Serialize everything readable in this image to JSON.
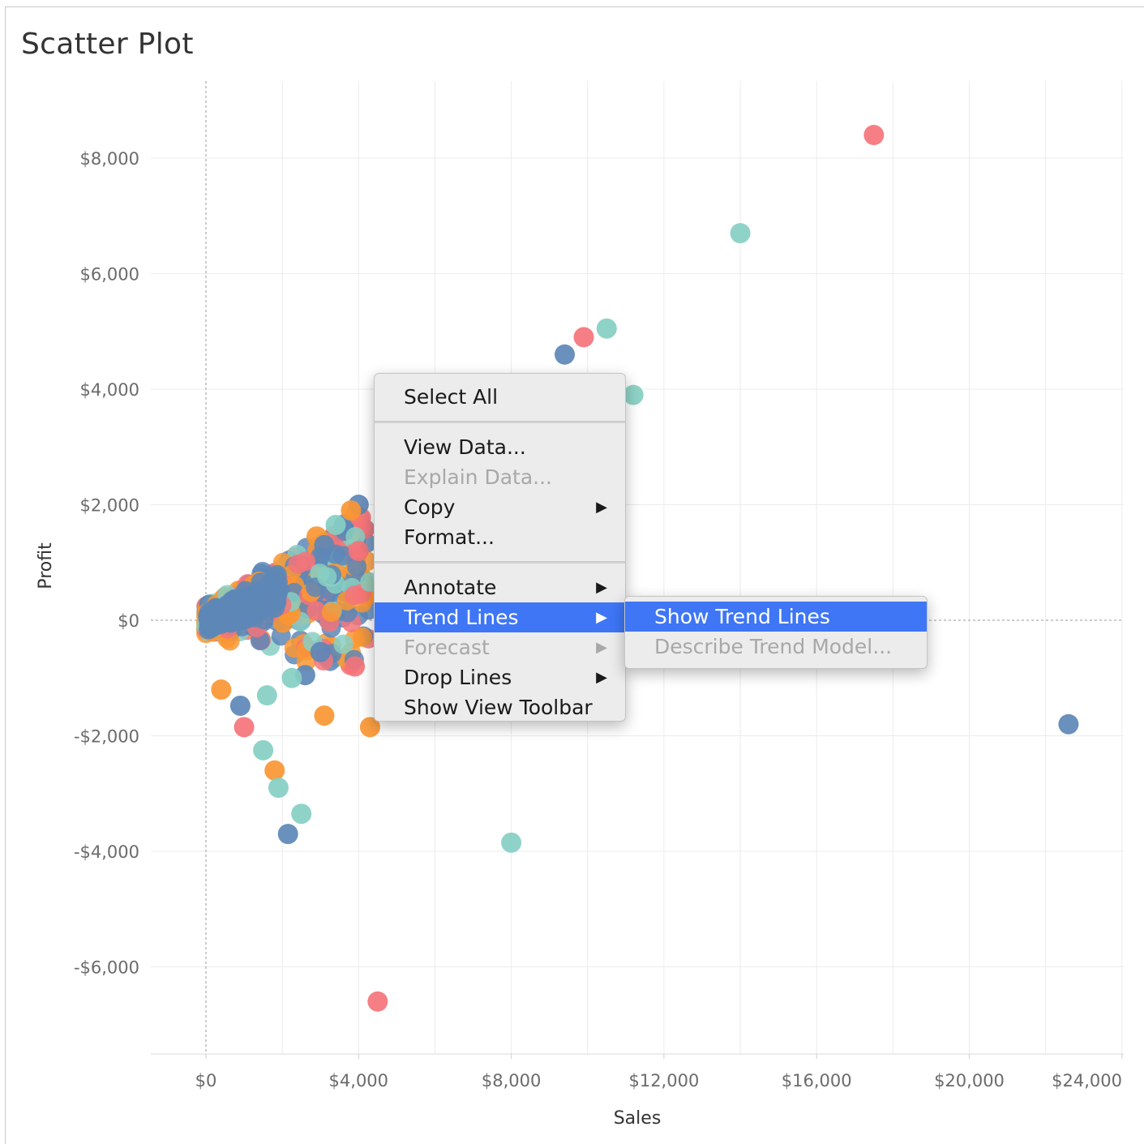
{
  "sheet": {
    "title": "Scatter Plot"
  },
  "chart_data": {
    "type": "scatter",
    "title": "Scatter Plot",
    "xlabel": "Sales",
    "ylabel": "Profit",
    "xlim": [
      -3500,
      24500
    ],
    "ylim": [
      -7400,
      9300
    ],
    "x_ticks": [
      0,
      4000,
      8000,
      12000,
      16000,
      20000,
      24000
    ],
    "x_tick_labels": [
      "$0",
      "$4,000",
      "$8,000",
      "$12,000",
      "$16,000",
      "$20,000",
      "$24,000"
    ],
    "y_ticks": [
      8000,
      6000,
      4000,
      2000,
      0,
      -2000,
      -4000,
      -6000
    ],
    "y_tick_labels": [
      "$8,000",
      "$6,000",
      "$4,000",
      "$2,000",
      "$0",
      "-$2,000",
      "-$4,000",
      "-$6,000"
    ],
    "grid": true,
    "zero_lines": true,
    "colors": {
      "red": "#f4747a",
      "teal": "#86cfc3",
      "blue": "#5d87b7",
      "orange": "#fa9633"
    },
    "points": [
      {
        "x": 17500,
        "y": 8400,
        "c": "red"
      },
      {
        "x": 14000,
        "y": 6700,
        "c": "teal"
      },
      {
        "x": 9900,
        "y": 4900,
        "c": "red"
      },
      {
        "x": 10500,
        "y": 5050,
        "c": "teal"
      },
      {
        "x": 9400,
        "y": 4600,
        "c": "blue"
      },
      {
        "x": 11200,
        "y": 3900,
        "c": "teal"
      },
      {
        "x": 22600,
        "y": -1800,
        "c": "blue"
      },
      {
        "x": 8000,
        "y": -3850,
        "c": "teal"
      },
      {
        "x": 4500,
        "y": -6600,
        "c": "red"
      },
      {
        "x": 4300,
        "y": -1850,
        "c": "orange"
      },
      {
        "x": 3100,
        "y": -1650,
        "c": "orange"
      },
      {
        "x": 3900,
        "y": -800,
        "c": "red"
      },
      {
        "x": 1000,
        "y": -1850,
        "c": "red"
      },
      {
        "x": 1500,
        "y": -2250,
        "c": "teal"
      },
      {
        "x": 1800,
        "y": -2600,
        "c": "orange"
      },
      {
        "x": 1900,
        "y": -2900,
        "c": "teal"
      },
      {
        "x": 2500,
        "y": -3350,
        "c": "teal"
      },
      {
        "x": 2150,
        "y": -3700,
        "c": "blue"
      },
      {
        "x": 900,
        "y": -1480,
        "c": "blue"
      },
      {
        "x": 3000,
        "y": -550,
        "c": "blue"
      },
      {
        "x": 2600,
        "y": -950,
        "c": "blue"
      },
      {
        "x": 2250,
        "y": -1000,
        "c": "teal"
      },
      {
        "x": 1600,
        "y": -1300,
        "c": "teal"
      },
      {
        "x": 400,
        "y": -1200,
        "c": "orange"
      },
      {
        "x": 4000,
        "y": 2000,
        "c": "blue"
      },
      {
        "x": 3800,
        "y": 1900,
        "c": "orange"
      },
      {
        "x": 3400,
        "y": 1650,
        "c": "teal"
      },
      {
        "x": 4000,
        "y": 1200,
        "c": "red"
      },
      {
        "x": 2900,
        "y": 1450,
        "c": "orange"
      },
      {
        "x": 3100,
        "y": 1300,
        "c": "blue"
      }
    ],
    "cluster_note": "dense overlapping cluster of several hundred points near Sales $0-$4,000, Profit -$1,500-$2,000"
  },
  "context_menu": {
    "items": [
      {
        "label": "Select All",
        "enabled": true,
        "submenu": false
      },
      {
        "separator": true
      },
      {
        "label": "View Data...",
        "enabled": true,
        "submenu": false
      },
      {
        "label": "Explain Data...",
        "enabled": false,
        "submenu": false
      },
      {
        "label": "Copy",
        "enabled": true,
        "submenu": true
      },
      {
        "label": "Format...",
        "enabled": true,
        "submenu": false
      },
      {
        "separator": true
      },
      {
        "label": "Annotate",
        "enabled": true,
        "submenu": true
      },
      {
        "label": "Trend Lines",
        "enabled": true,
        "submenu": true,
        "highlighted": true
      },
      {
        "label": "Forecast",
        "enabled": false,
        "submenu": true
      },
      {
        "label": "Drop Lines",
        "enabled": true,
        "submenu": true
      },
      {
        "label": "Show View Toolbar",
        "enabled": true,
        "submenu": false
      }
    ]
  },
  "trend_submenu": {
    "items": [
      {
        "label": "Show Trend Lines",
        "enabled": true,
        "highlighted": true
      },
      {
        "label": "Describe Trend Model...",
        "enabled": false
      }
    ]
  },
  "icons": {
    "submenu_arrow": "▶"
  }
}
